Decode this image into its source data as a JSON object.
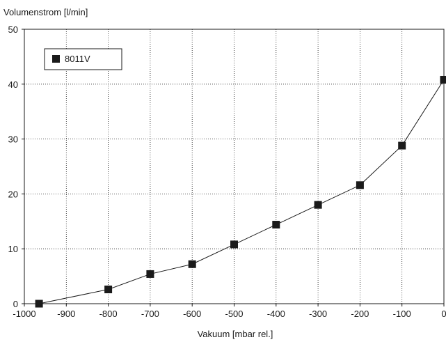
{
  "chart_data": {
    "type": "line",
    "title": "",
    "ylabel": "Volumenstrom [l/min]",
    "xlabel": "Vakuum [mbar rel.]",
    "xlim": [
      -1000,
      0
    ],
    "ylim": [
      0,
      50
    ],
    "xticks": [
      -1000,
      -900,
      -800,
      -700,
      -600,
      -500,
      -400,
      -300,
      -200,
      -100,
      0
    ],
    "xtick_labels": [
      "-1000",
      "-900",
      "-800",
      "-700",
      "-600",
      "-500",
      "-400",
      "-300",
      "-200",
      "-100",
      "0"
    ],
    "yticks": [
      0,
      10,
      20,
      30,
      40,
      50
    ],
    "ytick_labels": [
      "0",
      "10",
      "20",
      "30",
      "40",
      "50"
    ],
    "grid": true,
    "grid_style": "dotted",
    "legend_position": "top-left",
    "series": [
      {
        "name": "8011V",
        "marker": "square",
        "color": "#1a1a1a",
        "x": [
          -965,
          -800,
          -700,
          -600,
          -500,
          -400,
          -300,
          -200,
          -100,
          0
        ],
        "y": [
          0,
          2.6,
          5.4,
          7.2,
          10.8,
          14.4,
          18.0,
          21.6,
          28.8,
          40.8
        ]
      }
    ]
  }
}
